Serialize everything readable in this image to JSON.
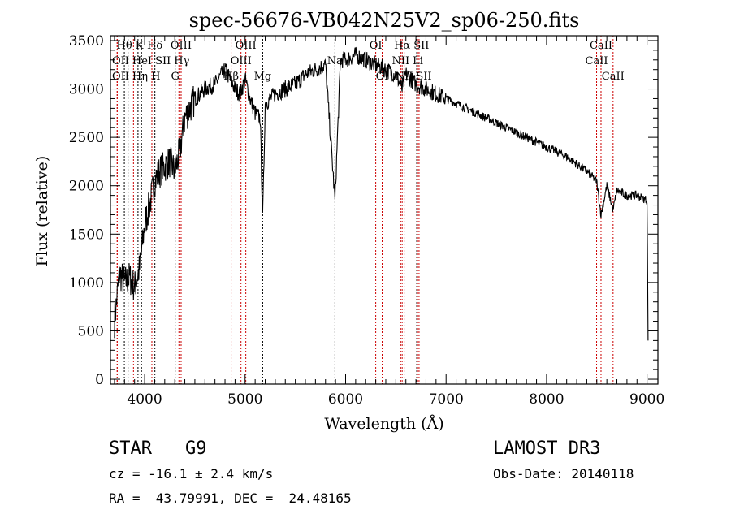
{
  "chart_data": {
    "type": "line",
    "title": "spec-56676-VB042N25V2_sp06-250.fits",
    "xlabel": "Wavelength (Å)",
    "ylabel": "Flux (relative)",
    "xlim": [
      3660,
      9108
    ],
    "ylim": [
      -50,
      3550
    ],
    "xticks": [
      4000,
      5000,
      6000,
      7000,
      8000,
      9000
    ],
    "yticks": [
      0,
      500,
      1000,
      1500,
      2000,
      2500,
      3000,
      3500
    ],
    "grid": false,
    "series": [
      {
        "name": "spectrum",
        "x": [
          3700,
          3750,
          3800,
          3850,
          3900,
          3950,
          4000,
          4050,
          4100,
          4150,
          4200,
          4250,
          4300,
          4350,
          4400,
          4450,
          4500,
          4600,
          4700,
          4800,
          4850,
          4900,
          4950,
          5000,
          5050,
          5100,
          5150,
          5175,
          5200,
          5300,
          5400,
          5500,
          5600,
          5700,
          5800,
          5894,
          5950,
          6000,
          6100,
          6200,
          6300,
          6400,
          6500,
          6563,
          6600,
          6700,
          6800,
          6900,
          7000,
          7200,
          7400,
          7600,
          7800,
          8000,
          8200,
          8400,
          8498,
          8542,
          8600,
          8662,
          8700,
          8800,
          8900,
          9000,
          9010
        ],
        "y": [
          600,
          1100,
          1000,
          1050,
          950,
          1150,
          1600,
          1800,
          2050,
          2150,
          2200,
          2250,
          2150,
          2350,
          2700,
          2800,
          2900,
          3000,
          3050,
          3200,
          3100,
          3000,
          2950,
          3100,
          2900,
          2750,
          2700,
          1650,
          2850,
          2950,
          3000,
          3050,
          3150,
          3200,
          3250,
          1850,
          3300,
          3300,
          3350,
          3300,
          3250,
          3200,
          3150,
          3000,
          3150,
          3050,
          3000,
          2950,
          2900,
          2800,
          2700,
          2600,
          2500,
          2400,
          2300,
          2150,
          2050,
          1700,
          2000,
          1750,
          1950,
          1900,
          1900,
          1850,
          400
        ]
      }
    ],
    "lines": [
      {
        "name": "OII",
        "wave": 3727,
        "kind": "emission",
        "row": 2
      },
      {
        "name": "Hθ",
        "wave": 3798,
        "kind": "absorption",
        "row": 0
      },
      {
        "name": "OII",
        "wave": 3727,
        "kind": "emission",
        "row": 1
      },
      {
        "name": "Hη",
        "wave": 3835,
        "kind": "absorption",
        "row": 2
      },
      {
        "name": "HeI",
        "wave": 3889,
        "kind": "emission",
        "row": 1
      },
      {
        "name": "K",
        "wave": 3934,
        "kind": "absorption",
        "row": 0
      },
      {
        "name": "H",
        "wave": 3969,
        "kind": "absorption",
        "row": 2
      },
      {
        "name": "SII",
        "wave": 4072,
        "kind": "emission",
        "row": 1
      },
      {
        "name": "Hδ",
        "wave": 4102,
        "kind": "absorption",
        "row": 0
      },
      {
        "name": "G",
        "wave": 4304,
        "kind": "absorption",
        "row": 2
      },
      {
        "name": "Hγ",
        "wave": 4341,
        "kind": "emission",
        "row": 1
      },
      {
        "name": "OIII",
        "wave": 4363,
        "kind": "emission",
        "row": 0
      },
      {
        "name": "Hβ",
        "wave": 4861,
        "kind": "emission",
        "row": 2
      },
      {
        "name": "OIII",
        "wave": 4959,
        "kind": "emission",
        "row": 1
      },
      {
        "name": "OIII",
        "wave": 5007,
        "kind": "emission",
        "row": 0
      },
      {
        "name": "Mg",
        "wave": 5175,
        "kind": "absorption",
        "row": 2
      },
      {
        "name": "Na",
        "wave": 5894,
        "kind": "absorption",
        "row": 1
      },
      {
        "name": "OI",
        "wave": 6300,
        "kind": "emission",
        "row": 0
      },
      {
        "name": "OI",
        "wave": 6364,
        "kind": "emission",
        "row": 2
      },
      {
        "name": "NII",
        "wave": 6548,
        "kind": "emission",
        "row": 1
      },
      {
        "name": "Hα",
        "wave": 6563,
        "kind": "emission",
        "row": 0
      },
      {
        "name": "NII",
        "wave": 6583,
        "kind": "emission",
        "row": 2
      },
      {
        "name": "Li",
        "wave": 6708,
        "kind": "absorption",
        "row": 1
      },
      {
        "name": "SII",
        "wave": 6716,
        "kind": "emission",
        "row": 0
      },
      {
        "name": "SII",
        "wave": 6731,
        "kind": "emission",
        "row": 2
      },
      {
        "name": "CaII",
        "wave": 8498,
        "kind": "emission",
        "row": 1
      },
      {
        "name": "CaII",
        "wave": 8542,
        "kind": "emission",
        "row": 0
      },
      {
        "name": "CaII",
        "wave": 8662,
        "kind": "emission",
        "row": 2
      }
    ]
  },
  "info": {
    "class": "STAR",
    "subclass": "G9",
    "survey": "LAMOST DR3",
    "cz": "cz = -16.1 ± 2.4 km/s",
    "obs_date": "Obs-Date: 20140118",
    "coords": "RA =  43.79991, DEC =  24.48165"
  },
  "colors": {
    "emission": "#cc0000",
    "absorption": "#000000"
  }
}
